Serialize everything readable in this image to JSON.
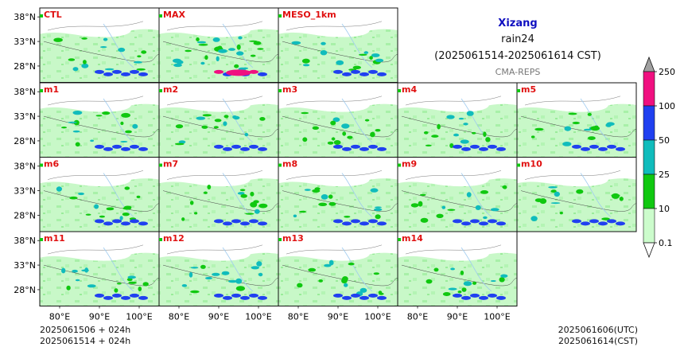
{
  "header": {
    "region": "Xizang",
    "variable": "rain24",
    "valid_period": "(2025061514-2025061614 CST)",
    "model": "CMA-REPS"
  },
  "footer": {
    "init_utc": "2025061506  +  024h",
    "init_cst": "2025061514  +  024h",
    "valid_utc": "2025061606(UTC)",
    "valid_cst": "2025061614(CST)"
  },
  "colors": {
    "title": "#1010c0",
    "member_label": "#e01010",
    "subtitle": "#777777"
  },
  "chart_data": {
    "type": "heatmap",
    "panels": [
      "CTL",
      "MAX",
      "MESO_1km",
      "m1",
      "m2",
      "m3",
      "m4",
      "m5",
      "m6",
      "m7",
      "m8",
      "m9",
      "m10",
      "m11",
      "m12",
      "m13",
      "m14"
    ],
    "layout_rows": [
      [
        "CTL",
        "MAX",
        "MESO_1km"
      ],
      [
        "m1",
        "m2",
        "m3",
        "m4",
        "m5"
      ],
      [
        "m6",
        "m7",
        "m8",
        "m9",
        "m10"
      ],
      [
        "m11",
        "m12",
        "m13",
        "m14"
      ]
    ],
    "lat_ticks": [
      "38°N",
      "33°N",
      "28°N"
    ],
    "lon_ticks": [
      "80°E",
      "90°E",
      "100°E"
    ],
    "lon_range": [
      75,
      105
    ],
    "lat_range": [
      25,
      40
    ],
    "colorbar": {
      "levels": [
        "0.1",
        "10",
        "25",
        "50",
        "100",
        "250"
      ],
      "colors": [
        "#ccfccc",
        "#10c810",
        "#10bcbc",
        "#2040f0",
        "#f01080"
      ],
      "extend": "both",
      "under_color": "#ffffff",
      "over_color": "#a0a0a0"
    }
  }
}
